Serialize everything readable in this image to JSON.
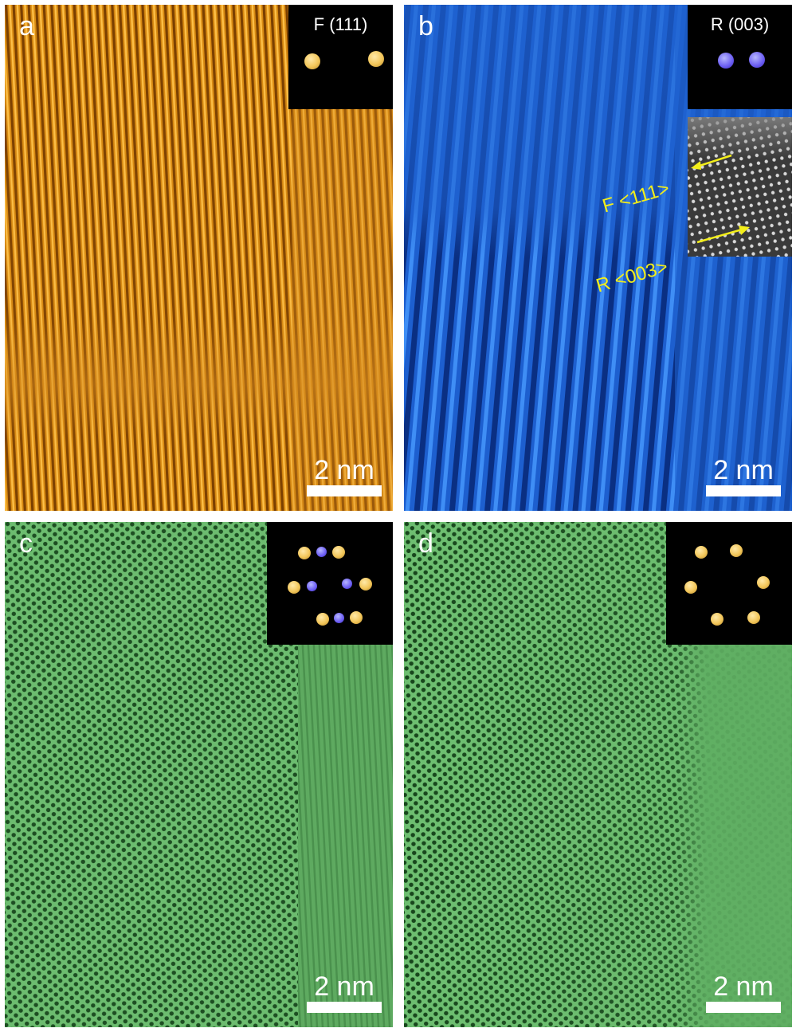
{
  "panels": {
    "a": {
      "label": "a",
      "inset_title": "F (111)",
      "scale_label": "2 nm",
      "color": "#d9860f",
      "inset_spots": [
        "gold",
        "gold"
      ]
    },
    "b": {
      "label": "b",
      "inset_title": "R (003)",
      "scale_label": "2 nm",
      "color": "#1f62d0",
      "inset_spots": [
        "blue",
        "blue"
      ],
      "annotations": {
        "f_direction": "F <111>",
        "r_direction": "R <003>"
      }
    },
    "c": {
      "label": "c",
      "scale_label": "2 nm",
      "color": "#5fae62",
      "inset_spots": [
        "gold",
        "blue",
        "gold",
        "gold",
        "blue",
        "blue",
        "gold",
        "gold",
        "blue",
        "gold"
      ]
    },
    "d": {
      "label": "d",
      "scale_label": "2 nm",
      "color": "#5fae62",
      "inset_spots": [
        "gold",
        "gold",
        "gold",
        "gold",
        "gold",
        "gold"
      ]
    }
  },
  "colors": {
    "annotation": "#f3ee1a",
    "inset_bg": "#000000"
  }
}
